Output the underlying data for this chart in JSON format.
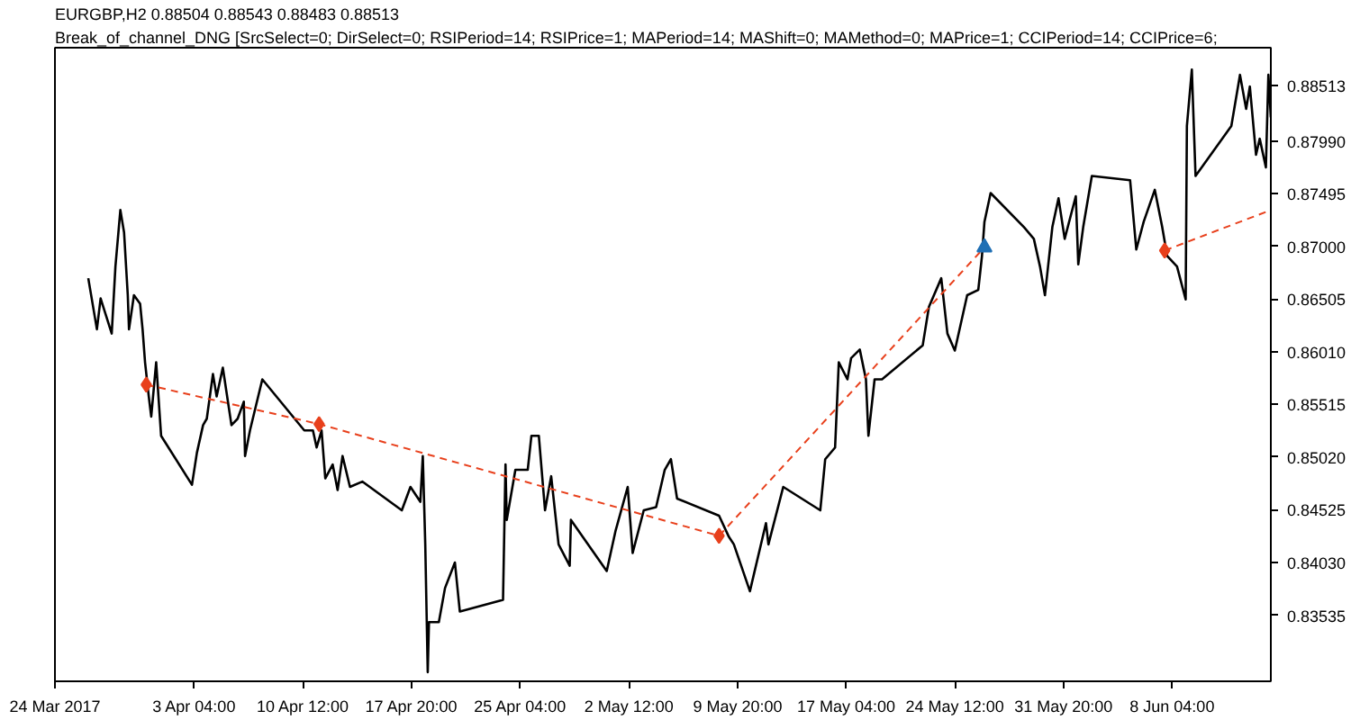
{
  "chart_data": {
    "type": "line",
    "title": "EURGBP,H2  0.88504 0.88543 0.88483 0.88513",
    "subtitle": "Break_of_channel_DNG [SrcSelect=0; DirSelect=0; RSIPeriod=14; RSIPrice=1; MAPeriod=14; MAShift=0; MAMethod=0; MAPrice=1; CCIPeriod=14; CCIPrice=6;",
    "xlim": [
      "2017-03-24T18:00",
      "2017-06-14T20:00"
    ],
    "xticks": [
      {
        "value": "2017-03-24T18:00",
        "label": "24 Mar 2017"
      },
      {
        "value": "2017-04-03T04:00",
        "label": "3 Apr 04:00"
      },
      {
        "value": "2017-04-10T12:00",
        "label": "10 Apr 12:00"
      },
      {
        "value": "2017-04-17T20:00",
        "label": "17 Apr 20:00"
      },
      {
        "value": "2017-04-25T04:00",
        "label": "25 Apr 04:00"
      },
      {
        "value": "2017-05-02T12:00",
        "label": "2 May 12:00"
      },
      {
        "value": "2017-05-09T20:00",
        "label": "9 May 20:00"
      },
      {
        "value": "2017-05-17T04:00",
        "label": "17 May 04:00"
      },
      {
        "value": "2017-05-24T12:00",
        "label": "24 May 12:00"
      },
      {
        "value": "2017-05-31T20:00",
        "label": "31 May 20:00"
      },
      {
        "value": "2017-06-08T04:00",
        "label": "8 Jun 04:00"
      }
    ],
    "ylim": [
      0.82914,
      0.88865
    ],
    "yticks": [
      {
        "value": 0.83535,
        "label": "0.83535"
      },
      {
        "value": 0.8403,
        "label": "0.84030"
      },
      {
        "value": 0.84525,
        "label": "0.84525"
      },
      {
        "value": 0.8502,
        "label": "0.85020"
      },
      {
        "value": 0.85515,
        "label": "0.85515"
      },
      {
        "value": 0.8601,
        "label": "0.86010"
      },
      {
        "value": 0.86505,
        "label": "0.86505"
      },
      {
        "value": 0.87,
        "label": "0.87000"
      },
      {
        "value": 0.87495,
        "label": "0.87495"
      },
      {
        "value": 0.8799,
        "label": "0.87990"
      },
      {
        "value": 0.88513,
        "label": "0.88513"
      }
    ],
    "grid": false,
    "series": [
      {
        "color": "#000000",
        "line_style": "solid",
        "x": [
          "2017-03-27T00:00",
          "2017-03-27T14:00",
          "2017-03-27T20:00",
          "2017-03-28T14:00",
          "2017-03-28T20:00",
          "2017-03-29T04:00",
          "2017-03-29T10:00",
          "2017-03-29T16:00",
          "2017-03-29T18:00",
          "2017-03-30T02:00",
          "2017-03-30T12:00",
          "2017-03-30T16:00",
          "2017-03-30T20:00",
          "2017-03-31T02:00",
          "2017-03-31T06:00",
          "2017-03-31T14:00",
          "2017-03-31T22:00",
          "2017-04-03T00:00",
          "2017-04-03T08:00",
          "2017-04-03T18:00",
          "2017-04-04T00:00",
          "2017-04-04T10:00",
          "2017-04-04T16:00",
          "2017-04-05T02:00",
          "2017-04-05T16:00",
          "2017-04-06T02:00",
          "2017-04-06T12:00",
          "2017-04-06T14:00",
          "2017-04-06T22:00",
          "2017-04-07T18:00",
          "2017-04-10T14:00",
          "2017-04-11T04:00",
          "2017-04-11T10:00",
          "2017-04-11T18:00",
          "2017-04-12T00:00",
          "2017-04-12T12:00",
          "2017-04-12T20:00",
          "2017-04-13T04:00",
          "2017-04-13T16:00",
          "2017-04-14T12:00",
          "2017-04-17T04:00",
          "2017-04-17T18:00",
          "2017-04-18T10:00",
          "2017-04-18T14:00",
          "2017-04-18T18:00",
          "2017-04-18T22:00",
          "2017-04-19T00:00",
          "2017-04-19T16:00",
          "2017-04-20T02:00",
          "2017-04-20T18:00",
          "2017-04-21T02:00",
          "2017-04-24T00:00",
          "2017-04-24T04:00",
          "2017-04-24T06:00",
          "2017-04-24T20:00",
          "2017-04-25T16:00",
          "2017-04-25T22:00",
          "2017-04-26T10:00",
          "2017-04-26T20:00",
          "2017-04-27T06:00",
          "2017-04-27T18:00",
          "2017-04-28T12:00",
          "2017-04-28T14:00",
          "2017-05-01T00:00",
          "2017-05-01T14:00",
          "2017-05-02T10:00",
          "2017-05-02T18:00",
          "2017-05-03T12:00",
          "2017-05-04T08:00",
          "2017-05-04T22:00",
          "2017-05-05T08:00",
          "2017-05-05T18:00",
          "2017-05-08T14:00",
          "2017-05-09T06:00",
          "2017-05-09T14:00",
          "2017-05-10T16:00",
          "2017-05-11T18:00",
          "2017-05-11T22:00",
          "2017-05-12T22:00",
          "2017-05-15T10:00",
          "2017-05-15T18:00",
          "2017-05-16T10:00",
          "2017-05-16T16:00",
          "2017-05-17T06:00",
          "2017-05-17T12:00",
          "2017-05-18T02:00",
          "2017-05-18T12:00",
          "2017-05-18T16:00",
          "2017-05-19T02:00",
          "2017-05-19T14:00",
          "2017-05-22T08:00",
          "2017-05-22T18:00",
          "2017-05-23T14:00",
          "2017-05-24T00:00",
          "2017-05-24T12:00",
          "2017-05-25T08:00",
          "2017-05-26T02:00",
          "2017-05-26T08:00",
          "2017-05-26T12:00",
          "2017-05-26T22:00",
          "2017-05-29T04:00",
          "2017-05-29T20:00",
          "2017-05-30T06:00",
          "2017-05-30T14:00",
          "2017-05-31T02:00",
          "2017-05-31T12:00",
          "2017-05-31T22:00",
          "2017-06-01T16:00",
          "2017-06-01T20:00",
          "2017-06-02T04:00",
          "2017-06-02T18:00",
          "2017-06-05T08:00",
          "2017-06-05T18:00",
          "2017-06-06T06:00",
          "2017-06-07T00:00",
          "2017-06-07T12:00",
          "2017-06-07T20:00",
          "2017-06-08T12:00",
          "2017-06-09T02:00",
          "2017-06-09T04:00",
          "2017-06-09T12:00",
          "2017-06-09T18:00",
          "2017-06-12T04:00",
          "2017-06-12T18:00",
          "2017-06-13T04:00",
          "2017-06-13T10:00",
          "2017-06-13T20:00",
          "2017-06-14T02:00",
          "2017-06-14T12:00",
          "2017-06-14T16:00",
          "2017-06-14T20:00"
        ],
        "values": [
          0.867,
          0.8622,
          0.8651,
          0.8618,
          0.8681,
          0.8734,
          0.8713,
          0.8654,
          0.8622,
          0.8654,
          0.8646,
          0.8622,
          0.8591,
          0.8559,
          0.854,
          0.8591,
          0.8522,
          0.8476,
          0.8506,
          0.8532,
          0.8538,
          0.858,
          0.8559,
          0.8586,
          0.8532,
          0.8538,
          0.8554,
          0.8503,
          0.8527,
          0.8575,
          0.8527,
          0.8527,
          0.8511,
          0.8527,
          0.8482,
          0.8495,
          0.8471,
          0.8503,
          0.8474,
          0.8479,
          0.8452,
          0.8474,
          0.846,
          0.8503,
          0.842,
          0.83,
          0.8347,
          0.8347,
          0.8379,
          0.8403,
          0.8357,
          0.8368,
          0.8495,
          0.8443,
          0.849,
          0.849,
          0.8522,
          0.8522,
          0.8452,
          0.8484,
          0.842,
          0.84,
          0.8443,
          0.8395,
          0.8432,
          0.8474,
          0.8412,
          0.8452,
          0.8455,
          0.849,
          0.85,
          0.8463,
          0.8447,
          0.8427,
          0.842,
          0.8376,
          0.844,
          0.842,
          0.8474,
          0.8452,
          0.85,
          0.8511,
          0.8591,
          0.8575,
          0.8595,
          0.8603,
          0.8575,
          0.8522,
          0.8575,
          0.8575,
          0.8607,
          0.8643,
          0.867,
          0.8618,
          0.8602,
          0.8654,
          0.8659,
          0.8691,
          0.8723,
          0.875,
          0.8718,
          0.8707,
          0.8681,
          0.8654,
          0.8718,
          0.8745,
          0.8707,
          0.8747,
          0.8683,
          0.8718,
          0.8766,
          0.8762,
          0.8697,
          0.8723,
          0.8753,
          0.8718,
          0.8691,
          0.8681,
          0.865,
          0.8813,
          0.8866,
          0.8766,
          0.8813,
          0.8861,
          0.8829,
          0.885,
          0.8786,
          0.8801,
          0.8774,
          0.8861,
          0.8821
        ]
      },
      {
        "color": "#e8401c",
        "line_style": "dashed",
        "x": [
          "2017-03-30T22:00",
          "2017-04-11T14:00",
          "2017-05-08T14:00",
          "2017-05-26T12:00",
          "2017-06-01T02:00",
          "2017-06-07T16:00",
          "2017-06-14T20:00"
        ],
        "values": [
          0.857,
          0.8533,
          0.8428,
          0.8699,
          null,
          0.8696,
          0.8734
        ]
      },
      {
        "type": "scatter",
        "color": "#e8401c",
        "marker": "diamond",
        "x": [
          "2017-03-30T22:00",
          "2017-04-11T14:00",
          "2017-05-08T14:00",
          "2017-06-07T16:00"
        ],
        "values": [
          0.857,
          0.8533,
          0.8428,
          0.8696
        ]
      },
      {
        "type": "scatter",
        "color": "#1f6fb4",
        "marker": "triangle",
        "x": [
          "2017-05-26T12:00"
        ],
        "values": [
          0.8699
        ]
      }
    ]
  }
}
